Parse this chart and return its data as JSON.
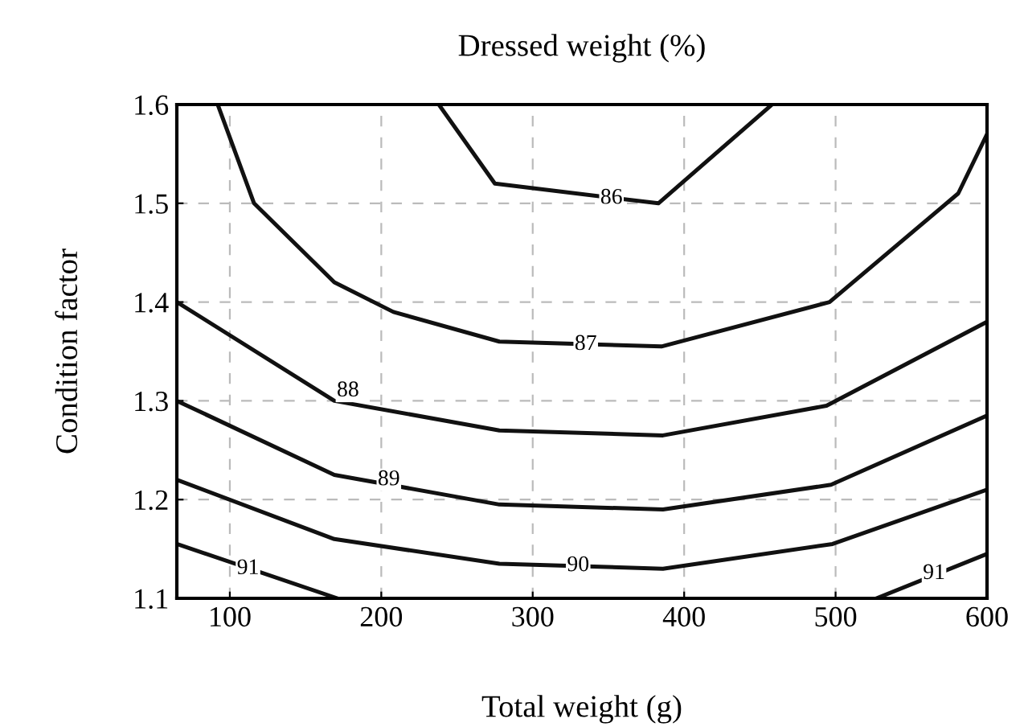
{
  "chart_data": {
    "type": "line",
    "title": "Dressed weight (%)",
    "xlabel": "Total weight (g)",
    "ylabel": "Condition factor",
    "xlim": [
      65,
      600
    ],
    "xticks": [
      100,
      200,
      300,
      400,
      500,
      600
    ],
    "ylim": [
      1.1,
      1.6
    ],
    "yticks": [
      1.1,
      1.2,
      1.3,
      1.4,
      1.5,
      1.6
    ],
    "grid": true,
    "legend": false,
    "marker": "none",
    "line_style": "solid",
    "series": [
      {
        "color": "#111111",
        "x": [
          238,
          275,
          383,
          458
        ],
        "values": [
          1.6,
          1.52,
          1.5,
          1.6
        ]
      },
      {
        "color": "#111111",
        "x": [
          92,
          116,
          169,
          208,
          278,
          385,
          496,
          581,
          600
        ],
        "values": [
          1.6,
          1.5,
          1.42,
          1.39,
          1.36,
          1.355,
          1.4,
          1.51,
          1.57
        ]
      },
      {
        "color": "#111111",
        "x": [
          65,
          169,
          278,
          386,
          494,
          600
        ],
        "values": [
          1.4,
          1.3,
          1.27,
          1.265,
          1.295,
          1.38
        ]
      },
      {
        "color": "#111111",
        "x": [
          65,
          169,
          278,
          386,
          497,
          600
        ],
        "values": [
          1.3,
          1.225,
          1.195,
          1.19,
          1.215,
          1.285
        ]
      },
      {
        "color": "#111111",
        "x": [
          65,
          169,
          278,
          386,
          498,
          600
        ],
        "values": [
          1.22,
          1.16,
          1.135,
          1.13,
          1.155,
          1.21
        ]
      },
      {
        "color": "#111111",
        "x": [
          65,
          171,
          349,
          527,
          600
        ],
        "values": [
          1.155,
          1.1,
          null,
          1.1,
          1.145
        ]
      }
    ],
    "annotations": [
      {
        "text": "86",
        "x": 352,
        "y": 1.505
      },
      {
        "text": "87",
        "x": 335,
        "y": 1.357
      },
      {
        "text": "88",
        "x": 178,
        "y": 1.31
      },
      {
        "text": "89",
        "x": 205,
        "y": 1.22
      },
      {
        "text": "90",
        "x": 330,
        "y": 1.133
      },
      {
        "text": "91",
        "x": 112,
        "y": 1.13
      },
      {
        "text": "91",
        "x": 565,
        "y": 1.125
      }
    ]
  }
}
